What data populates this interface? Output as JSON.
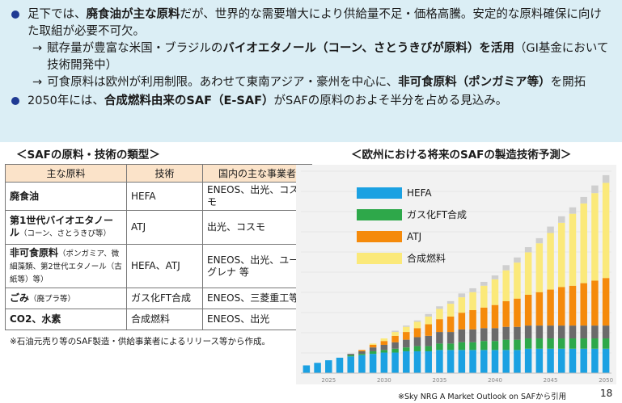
{
  "bullets": {
    "b1": {
      "t1": "足下では、",
      "t2": "廃食油が主な原料",
      "t3": "だが、世界的な需要増大により供給量不足・価格高騰。安定的な原料確保に向けた取組が必要不可欠。"
    },
    "sub1": {
      "arrow": "→",
      "t1": "賦存量が豊富な米国・ブラジルの",
      "t2": "バイオエタノール（コーン、さとうきびが原料）を活用",
      "t3": "（GI基金において技術開発中）"
    },
    "sub2": {
      "arrow": "→",
      "t1": "可食原料は欧州が利用制限。あわせて東南アジア・豪州を中心に、",
      "t2": "非可食原料（ポンガミア等）",
      "t3": "を開拓"
    },
    "b2": {
      "t1": "2050年には、",
      "t2": "合成燃料由来のSAF（E-SAF）",
      "t3": "がSAFの原料のおよそ半分を占める見込み。"
    }
  },
  "table_title": "＜SAFの原料・技術の類型＞",
  "chart_title": "＜欧州における将来のSAFの製造技術予測＞",
  "table": {
    "headers": [
      "主な原料",
      "技術",
      "国内の主な事業者"
    ],
    "rows": [
      {
        "main": "廃食油",
        "sub": "",
        "tech": "HEFA",
        "biz": "ENEOS、出光、コスモ"
      },
      {
        "main": "第1世代バイオエタノール",
        "sub": "（コーン、さとうきび等）",
        "tech": "ATJ",
        "biz": "出光、コスモ"
      },
      {
        "main": "非可食原料",
        "sub": "（ポンガミア、微細藻類、第2世代エタノール（古紙等）等）",
        "tech": "HEFA、ATJ",
        "biz": "ENEOS、出光、ユーグレナ 等"
      },
      {
        "main": "ごみ",
        "sub": "（廃プラ等）",
        "tech": "ガス化FT合成",
        "biz": "ENEOS、三菱重工等"
      },
      {
        "main": "CO2、水素",
        "sub": "",
        "tech": "合成燃料",
        "biz": "ENEOS、出光"
      }
    ]
  },
  "note": "※石油元売り等のSAF製造・供給事業者によるリリース等から作成。",
  "source": "※Sky NRG A Market Outlook on SAFから引用",
  "page_number": "18",
  "chart_data": {
    "type": "bar",
    "stacked": true,
    "x": [
      2023,
      2024,
      2025,
      2026,
      2027,
      2028,
      2029,
      2030,
      2031,
      2032,
      2033,
      2034,
      2035,
      2036,
      2037,
      2038,
      2039,
      2040,
      2041,
      2042,
      2043,
      2044,
      2045,
      2046,
      2047,
      2048,
      2049,
      2050
    ],
    "x_tick_labels": [
      "2025",
      "2030",
      "2035",
      "2040",
      "2045",
      "2050"
    ],
    "x_tick_values": [
      2025,
      2030,
      2035,
      2040,
      2045,
      2050
    ],
    "series": [
      {
        "name": "HEFA",
        "color": "#1ba1e2",
        "values": [
          6,
          8,
          10,
          12,
          13,
          14,
          15,
          16,
          16,
          17,
          17,
          17,
          18,
          18,
          18,
          18,
          18,
          18,
          18,
          18,
          19,
          19,
          19,
          19,
          19,
          19,
          19,
          19
        ]
      },
      {
        "name": "ガス化FT合成",
        "color": "#2ea84a",
        "values": [
          0,
          0,
          0,
          0,
          1,
          1,
          2,
          2,
          3,
          3,
          4,
          4,
          5,
          5,
          6,
          6,
          7,
          7,
          8,
          8,
          8,
          8,
          8,
          8,
          8,
          8,
          8,
          8
        ]
      },
      {
        "name": "",
        "color": "#6b6b6b",
        "values": [
          0,
          0,
          0,
          0,
          1,
          2,
          3,
          4,
          5,
          6,
          7,
          8,
          9,
          9,
          10,
          10,
          10,
          10,
          10,
          10,
          10,
          10,
          10,
          10,
          10,
          10,
          10,
          10
        ]
      },
      {
        "name": "ATJ",
        "color": "#f58a0b",
        "values": [
          0,
          0,
          0,
          0,
          0,
          1,
          2,
          3,
          5,
          6,
          7,
          9,
          10,
          12,
          13,
          15,
          16,
          18,
          20,
          22,
          24,
          26,
          28,
          30,
          31,
          33,
          35,
          37
        ]
      },
      {
        "name": "合成燃料",
        "color": "#fbe97a",
        "values": [
          0,
          0,
          0,
          0,
          0,
          0,
          1,
          2,
          3,
          4,
          5,
          6,
          8,
          10,
          12,
          14,
          17,
          20,
          24,
          28,
          33,
          38,
          44,
          50,
          56,
          62,
          68,
          74
        ]
      },
      {
        "name": "",
        "color": "#cfcfcf",
        "values": [
          0,
          0,
          0,
          0,
          0,
          0,
          0,
          0,
          1,
          1,
          1,
          2,
          2,
          2,
          3,
          3,
          3,
          3,
          4,
          4,
          4,
          4,
          5,
          5,
          5,
          5,
          6,
          6
        ]
      }
    ],
    "legend_placement": "top-left"
  }
}
